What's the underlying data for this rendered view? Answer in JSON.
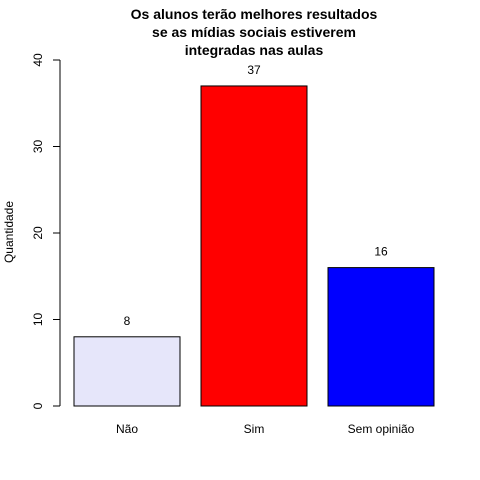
{
  "chart_data": {
    "type": "bar",
    "title": [
      "Os alunos terão melhores resultados",
      "se as mídias sociais estiverem",
      "integradas nas aulas"
    ],
    "ylabel": "Quantidade",
    "xlabel": "",
    "categories": [
      "Não",
      "Sim",
      "Sem opinião"
    ],
    "values": [
      8,
      37,
      16
    ],
    "value_labels": [
      "8",
      "37",
      "16"
    ],
    "ylim": [
      0,
      40
    ],
    "yticks": [
      0,
      10,
      20,
      30,
      40
    ],
    "colors": [
      "#e6e6fa",
      "#ff0000",
      "#0000ff"
    ],
    "grid": false,
    "legend": "none"
  }
}
